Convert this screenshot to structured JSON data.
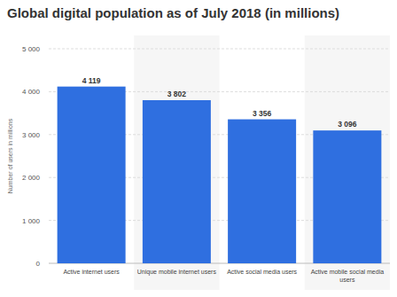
{
  "chart_data": {
    "type": "bar",
    "title": "Global digital population as of July 2018 (in millions)",
    "y_label": "Number of users in millions",
    "categories": [
      "Active internet users",
      "Unique mobile internet users",
      "Active social media users",
      "Active mobile social media users"
    ],
    "values": [
      4119,
      3802,
      3356,
      3096
    ],
    "value_labels": [
      "4 119",
      "3 802",
      "3 356",
      "3 096"
    ],
    "color": "#2f6fe0",
    "ylim": [
      0,
      5000
    ],
    "yticks": [
      0,
      {
        "value": 1000,
        "label": "1 000"
      },
      {
        "value": 2000,
        "label": "2 000"
      },
      {
        "value": 3000,
        "label": "3 000"
      },
      {
        "value": 4000,
        "label": "4 000"
      },
      {
        "value": 5000,
        "label": "5 000"
      }
    ],
    "grid": true,
    "data_labels": true
  }
}
